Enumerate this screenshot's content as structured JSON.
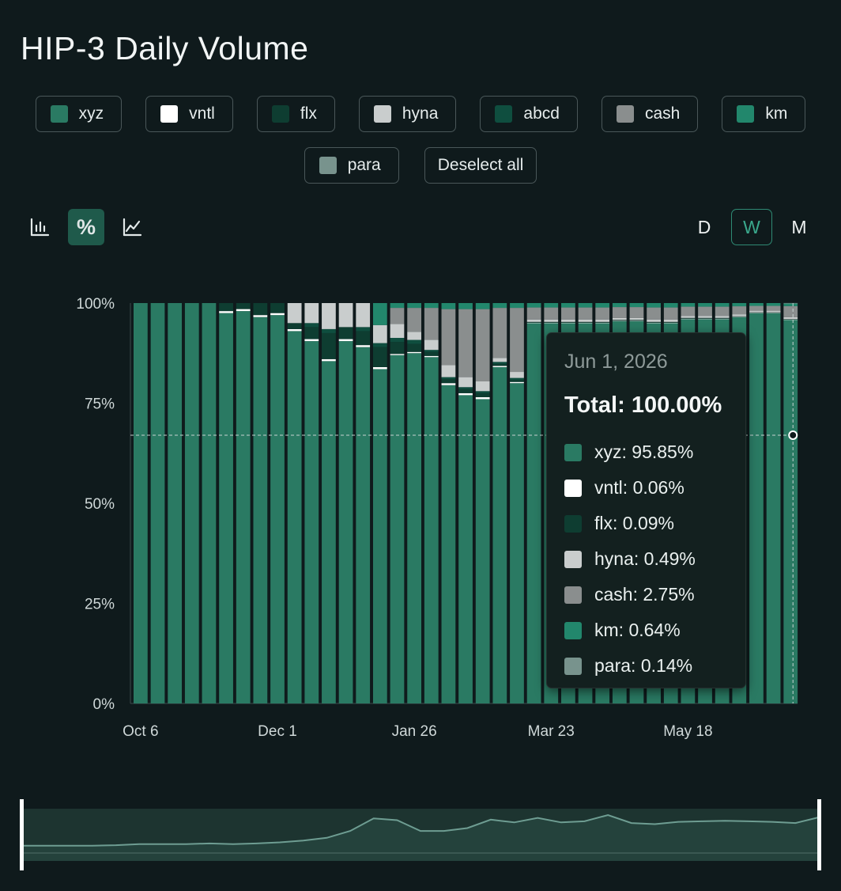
{
  "title": "HIP-3 Daily Volume",
  "legend": [
    {
      "label": "xyz",
      "color": "#2a7a63"
    },
    {
      "label": "vntl",
      "color": "#ffffff"
    },
    {
      "label": "flx",
      "color": "#0e3d31"
    },
    {
      "label": "hyna",
      "color": "#c9cdcd"
    },
    {
      "label": "abcd",
      "color": "#0f4e3f"
    },
    {
      "label": "cash",
      "color": "#8a8e8e"
    },
    {
      "label": "km",
      "color": "#22876c"
    },
    {
      "label": "para",
      "color": "#78938d"
    }
  ],
  "deselect_label": "Deselect all",
  "toolbar": {
    "bar_icon": "bar-chart-icon",
    "percent_icon": "percent-icon",
    "line_icon": "line-chart-icon",
    "percent_glyph": "%",
    "active": "percent"
  },
  "periods": [
    "D",
    "W",
    "M"
  ],
  "active_period": "W",
  "chart_data": {
    "type": "bar",
    "stacked": true,
    "normalized_percent": true,
    "ylim": [
      0,
      100
    ],
    "yticks": [
      "0%",
      "25%",
      "50%",
      "75%",
      "100%"
    ],
    "xticks": [
      "Oct 6",
      "Dec 1",
      "Jan 26",
      "Mar 23",
      "May 18"
    ],
    "grid": false,
    "series_order": [
      "xyz",
      "vntl",
      "flx",
      "abcd",
      "hyna",
      "cash",
      "km",
      "para"
    ],
    "series_colors": {
      "xyz": "#2a7a63",
      "vntl": "#ffffff",
      "flx": "#0e3d31",
      "abcd": "#0f4e3f",
      "hyna": "#c9cdcd",
      "cash": "#8a8e8e",
      "km": "#22876c",
      "para": "#78938d"
    },
    "bars": [
      {
        "xyz": 100
      },
      {
        "xyz": 100
      },
      {
        "xyz": 100
      },
      {
        "xyz": 100
      },
      {
        "xyz": 100
      },
      {
        "xyz": 97.5,
        "vntl": 0.5,
        "flx": 2
      },
      {
        "xyz": 98,
        "vntl": 0.5,
        "flx": 1.5
      },
      {
        "xyz": 96.5,
        "vntl": 0.5,
        "flx": 3
      },
      {
        "xyz": 97,
        "vntl": 0.5,
        "flx": 2.5
      },
      {
        "xyz": 93,
        "vntl": 0.5,
        "flx": 1.5,
        "hyna": 5
      },
      {
        "xyz": 90.5,
        "vntl": 0.5,
        "flx": 3,
        "abcd": 1,
        "hyna": 5
      },
      {
        "xyz": 85.5,
        "vntl": 0.5,
        "flx": 6.5,
        "abcd": 1,
        "hyna": 6.5
      },
      {
        "xyz": 90.5,
        "vntl": 0.5,
        "flx": 3,
        "abcd": 0,
        "hyna": 6
      },
      {
        "xyz": 89,
        "vntl": 0.5,
        "flx": 3.5,
        "abcd": 1,
        "hyna": 6
      },
      {
        "xyz": 83.5,
        "vntl": 0.5,
        "flx": 5,
        "abcd": 1,
        "hyna": 4.5,
        "km": 5.5
      },
      {
        "xyz": 87,
        "vntl": 0.3,
        "flx": 3,
        "abcd": 1,
        "hyna": 3.5,
        "cash": 4,
        "km": 1.2
      },
      {
        "xyz": 87.5,
        "vntl": 0.3,
        "flx": 2,
        "abcd": 1,
        "hyna": 2,
        "cash": 6,
        "km": 1.2
      },
      {
        "xyz": 86.5,
        "vntl": 0.3,
        "flx": 1,
        "abcd": 0.5,
        "hyna": 2.5,
        "cash": 8,
        "km": 1.2
      },
      {
        "xyz": 79.5,
        "vntl": 0.5,
        "flx": 1,
        "abcd": 0.5,
        "hyna": 3,
        "cash": 14,
        "km": 1.5
      },
      {
        "xyz": 77,
        "vntl": 0.5,
        "flx": 1,
        "abcd": 0.5,
        "hyna": 2.5,
        "cash": 17,
        "km": 1.5
      },
      {
        "xyz": 76,
        "vntl": 0.5,
        "flx": 1,
        "abcd": 0.5,
        "hyna": 2.5,
        "cash": 18,
        "km": 1.5
      },
      {
        "xyz": 84,
        "vntl": 0.3,
        "flx": 0.5,
        "abcd": 0.5,
        "hyna": 1,
        "cash": 12.5,
        "km": 1.2
      },
      {
        "xyz": 80,
        "vntl": 0.3,
        "flx": 0.5,
        "abcd": 0.5,
        "hyna": 1.5,
        "cash": 16,
        "km": 1.2
      },
      {
        "xyz": 95,
        "vntl": 0.1,
        "flx": 0.2,
        "hyna": 0.6,
        "cash": 3,
        "km": 1.1
      },
      {
        "xyz": 95,
        "vntl": 0.1,
        "flx": 0.2,
        "hyna": 0.6,
        "cash": 3,
        "km": 1.1
      },
      {
        "xyz": 95,
        "vntl": 0.1,
        "flx": 0.2,
        "hyna": 0.6,
        "cash": 3,
        "km": 1.1
      },
      {
        "xyz": 95,
        "vntl": 0.1,
        "flx": 0.2,
        "hyna": 0.6,
        "cash": 3,
        "km": 1.1
      },
      {
        "xyz": 95,
        "vntl": 0.1,
        "flx": 0.2,
        "hyna": 0.6,
        "cash": 3,
        "km": 1.1
      },
      {
        "xyz": 95.5,
        "vntl": 0.1,
        "flx": 0.2,
        "hyna": 0.5,
        "cash": 2.7,
        "km": 1
      },
      {
        "xyz": 95.5,
        "vntl": 0.1,
        "flx": 0.2,
        "hyna": 0.5,
        "cash": 2.7,
        "km": 1
      },
      {
        "xyz": 95,
        "vntl": 0.1,
        "flx": 0.2,
        "hyna": 0.6,
        "cash": 3,
        "km": 1.1
      },
      {
        "xyz": 95,
        "vntl": 0.1,
        "flx": 0.2,
        "hyna": 0.6,
        "cash": 3,
        "km": 1.1
      },
      {
        "xyz": 96,
        "vntl": 0.1,
        "flx": 0.2,
        "hyna": 0.5,
        "cash": 2.3,
        "km": 0.9
      },
      {
        "xyz": 96,
        "vntl": 0.1,
        "flx": 0.2,
        "hyna": 0.5,
        "cash": 2.3,
        "km": 0.9
      },
      {
        "xyz": 96,
        "vntl": 0.1,
        "flx": 0.2,
        "hyna": 0.5,
        "cash": 2.3,
        "km": 0.9
      },
      {
        "xyz": 96.5,
        "vntl": 0.1,
        "flx": 0.1,
        "hyna": 0.5,
        "cash": 2,
        "km": 0.8
      },
      {
        "xyz": 97.5,
        "vntl": 0.1,
        "flx": 0.1,
        "hyna": 0.4,
        "cash": 1.2,
        "km": 0.7
      },
      {
        "xyz": 97.5,
        "vntl": 0.1,
        "flx": 0.1,
        "hyna": 0.4,
        "cash": 1.2,
        "km": 0.7
      },
      {
        "xyz": 95.85,
        "vntl": 0.06,
        "flx": 0.09,
        "hyna": 0.49,
        "cash": 2.75,
        "km": 0.64,
        "para": 0.14
      }
    ],
    "crosshair_y": 67,
    "navigator_series": [
      1.0,
      1.0,
      1.0,
      1.0,
      1.1,
      1.3,
      1.3,
      1.3,
      1.4,
      1.3,
      1.4,
      1.6,
      1.9,
      2.4,
      3.6,
      5.8,
      5.5,
      3.6,
      3.6,
      4.1,
      5.6,
      5.1,
      5.9,
      5.1,
      5.3,
      6.4,
      5.0,
      4.8,
      5.2,
      5.3,
      5.4,
      5.3,
      5.2,
      5.0,
      6.0
    ]
  },
  "tooltip": {
    "date": "Jun 1, 2026",
    "total": "Total: 100.00%",
    "rows": [
      {
        "label": "xyz: 95.85%",
        "color": "#2a7a63"
      },
      {
        "label": "vntl: 0.06%",
        "color": "#ffffff"
      },
      {
        "label": "flx: 0.09%",
        "color": "#0e3d31"
      },
      {
        "label": "hyna: 0.49%",
        "color": "#c9cdcd"
      },
      {
        "label": "cash: 2.75%",
        "color": "#8a8e8e"
      },
      {
        "label": "km: 0.64%",
        "color": "#22876c"
      },
      {
        "label": "para: 0.14%",
        "color": "#78938d"
      }
    ]
  }
}
